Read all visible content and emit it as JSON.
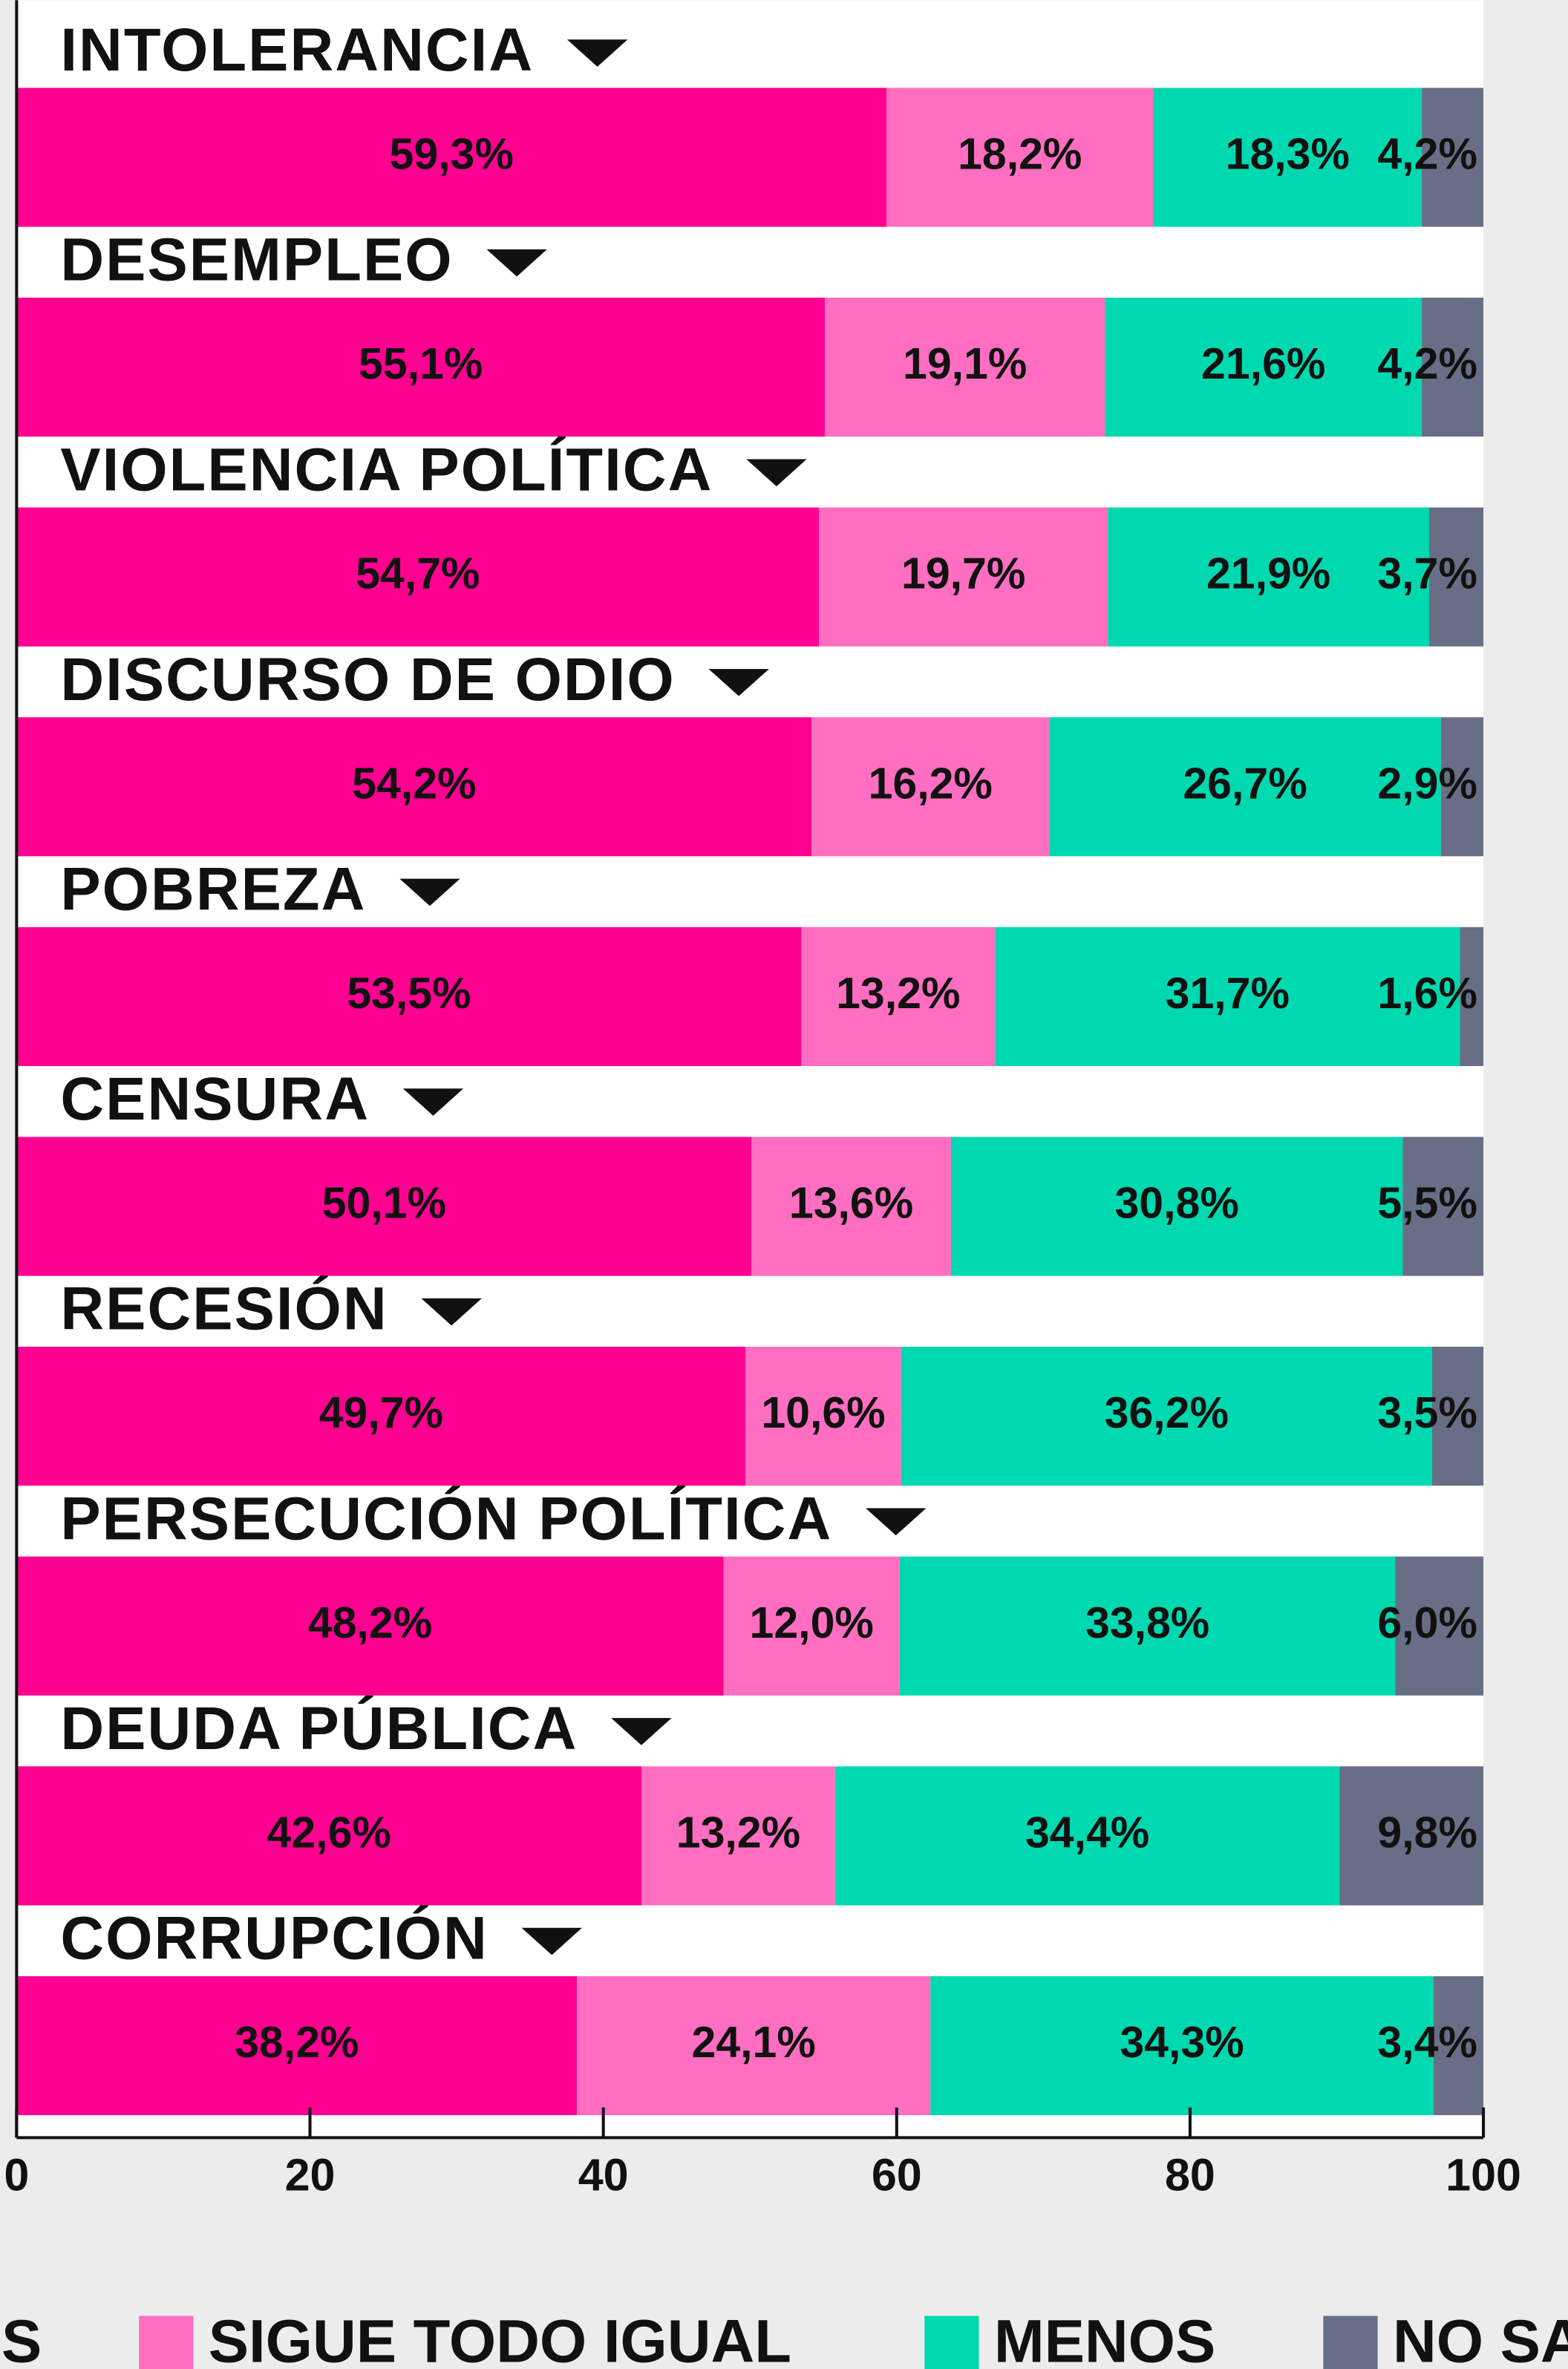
{
  "chart_data": {
    "type": "stacked-bar-horizontal",
    "categories": [
      "INTOLERANCIA",
      "DESEMPLEO",
      "VIOLENCIA POLÍTICA",
      "DISCURSO DE ODIO",
      "POBREZA",
      "CENSURA",
      "RECESIÓN",
      "PERSECUCIÓN POLÍTICA",
      "DEUDA PÚBLICA",
      "CORRUPCIÓN"
    ],
    "series": [
      {
        "name": "S",
        "color": "#ff0090",
        "values": [
          59.3,
          55.1,
          54.7,
          54.2,
          53.5,
          50.1,
          49.7,
          48.2,
          42.6,
          38.2
        ],
        "value_labels": [
          "59,3%",
          "55,1%",
          "54,7%",
          "54,2%",
          "53,5%",
          "50,1%",
          "49,7%",
          "48,2%",
          "42,6%",
          "38,2%"
        ]
      },
      {
        "name": "SIGUE TODO IGUAL",
        "color": "#ff6ec0",
        "values": [
          18.2,
          19.1,
          19.7,
          16.2,
          13.2,
          13.6,
          10.6,
          12.0,
          13.2,
          24.1
        ],
        "value_labels": [
          "18,2%",
          "19,1%",
          "19,7%",
          "16,2%",
          "13,2%",
          "13,6%",
          "10,6%",
          "12,0%",
          "13,2%",
          "24,1%"
        ]
      },
      {
        "name": "MENOS",
        "color": "#00d9b0",
        "values": [
          18.3,
          21.6,
          21.9,
          26.7,
          31.7,
          30.8,
          36.2,
          33.8,
          34.4,
          34.3
        ],
        "value_labels": [
          "18,3%",
          "21,6%",
          "21,9%",
          "26,7%",
          "31,7%",
          "30,8%",
          "36,2%",
          "33,8%",
          "34,4%",
          "34,3%"
        ]
      },
      {
        "name": "NO SA",
        "color": "#676e85",
        "values": [
          4.2,
          4.2,
          3.7,
          2.9,
          1.6,
          5.5,
          3.5,
          6.0,
          9.8,
          3.4
        ],
        "value_labels": [
          "4,2%",
          "4,2%",
          "3,7%",
          "2,9%",
          "1,6%",
          "5,5%",
          "3,5%",
          "6,0%",
          "9,8%",
          "3,4%"
        ]
      }
    ],
    "xlim": [
      0,
      100
    ],
    "xticks": [
      0,
      20,
      40,
      60,
      80,
      100
    ]
  }
}
